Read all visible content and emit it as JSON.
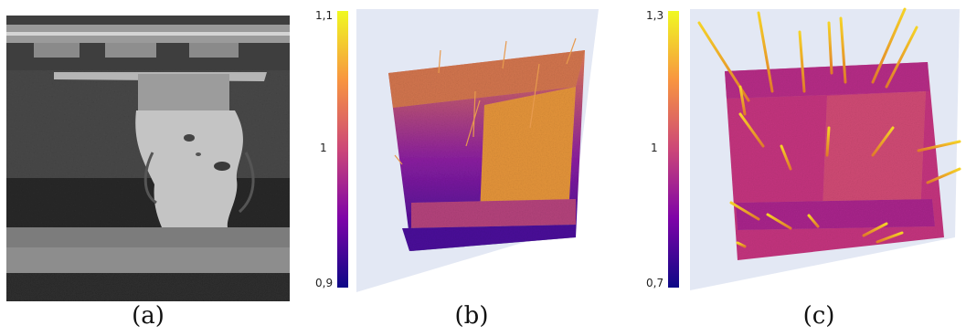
{
  "figure": {
    "panels": [
      {
        "caption": "(a)"
      },
      {
        "caption": "(b)",
        "colorbar": {
          "max_label": "1,1",
          "mid_label": "1",
          "min_label": "0,9"
        }
      },
      {
        "caption": "(c)",
        "colorbar": {
          "max_label": "1,3",
          "mid_label": "1",
          "min_label": "0,7"
        }
      }
    ],
    "colormap": [
      "#0d0887",
      "#7e03a8",
      "#cc4778",
      "#f89540",
      "#f0f921"
    ]
  }
}
